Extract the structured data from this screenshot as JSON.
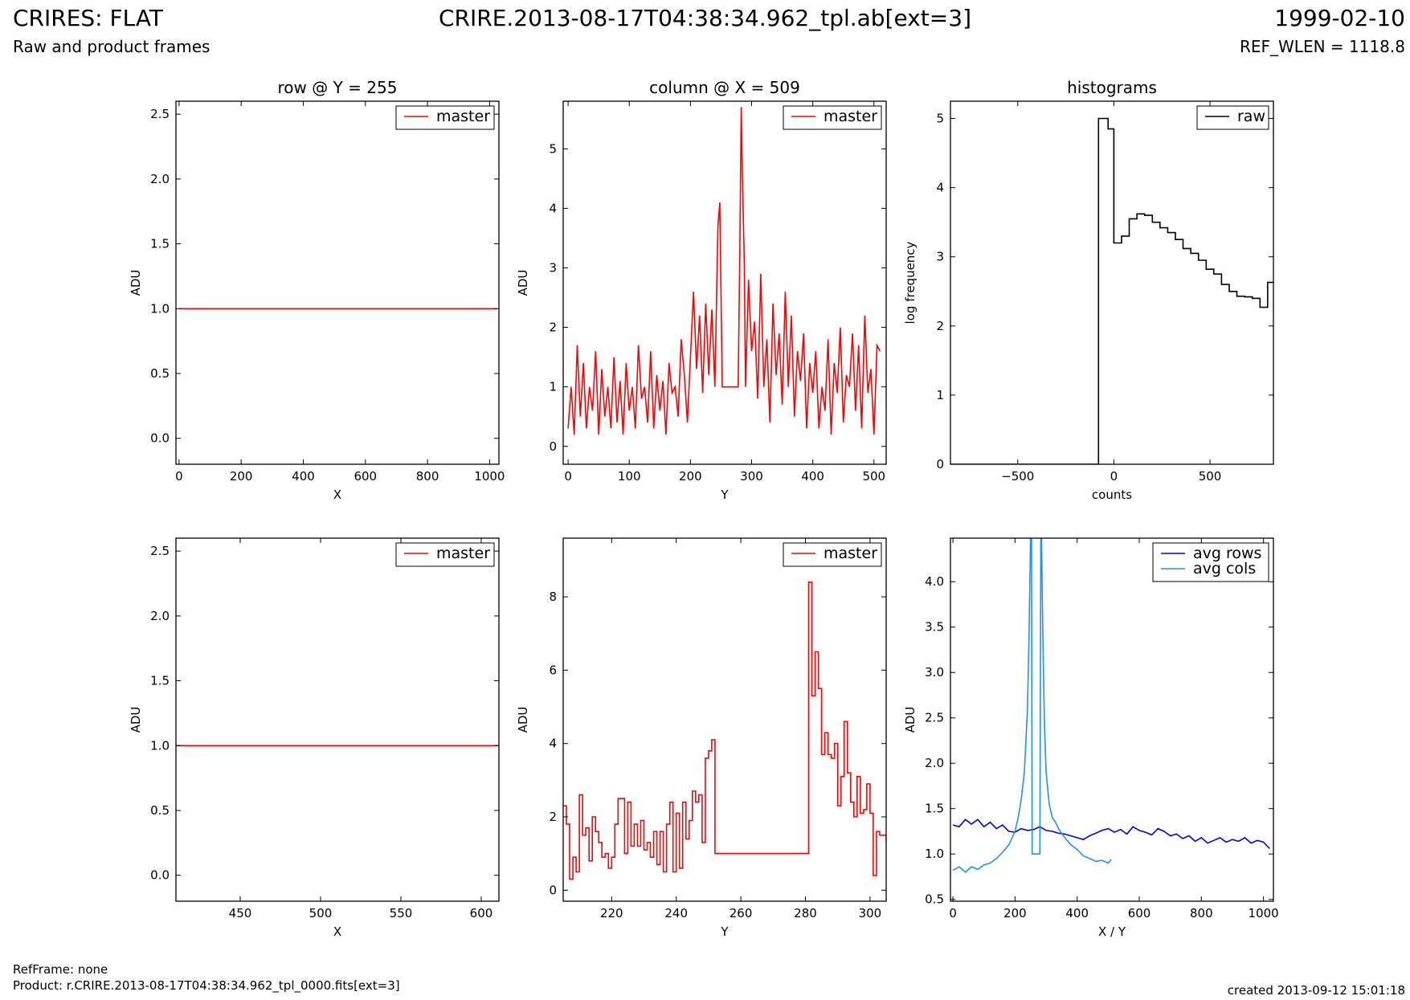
{
  "header": {
    "title_left": "CRIRES: FLAT",
    "subtitle_left": "Raw and product frames",
    "title_center": "CRIRE.2013-08-17T04:38:34.962_tpl.ab[ext=3]",
    "title_right": "1999-02-10",
    "subtitle_right": "REF_WLEN = 1118.8"
  },
  "footer": {
    "ref_frame": "RefFrame: none",
    "product": "Product: r.CRIRE.2013-08-17T04:38:34.962_tpl_0000.fits[ext=3]",
    "created": "created 2013-09-12 15:01:18"
  },
  "colors": {
    "master": "#ff0000",
    "raw": "#000000",
    "avg_rows": "#0000ee",
    "avg_cols": "#1e90ff"
  },
  "chart_data": [
    {
      "type": "line",
      "title": "row @ Y = 255",
      "xlabel": "X",
      "ylabel": "ADU",
      "xlim": [
        -10,
        1030
      ],
      "ylim": [
        -0.2,
        2.6
      ],
      "xticks": [
        0,
        200,
        400,
        600,
        800,
        1000
      ],
      "yticks": [
        0.0,
        0.5,
        1.0,
        1.5,
        2.0,
        2.5
      ],
      "ytick_labels": [
        "0.0",
        "0.5",
        "1.0",
        "1.5",
        "2.0",
        "2.5"
      ],
      "legend": "top-right",
      "series": [
        {
          "name": "master",
          "color": "#ff0000",
          "step": false,
          "x": [
            0,
            1023
          ],
          "y": [
            1.0,
            1.0
          ]
        }
      ]
    },
    {
      "type": "line",
      "title": "column @ X = 509",
      "xlabel": "Y",
      "ylabel": "ADU",
      "xlim": [
        -8,
        520
      ],
      "ylim": [
        -0.3,
        5.8
      ],
      "xticks": [
        0,
        100,
        200,
        300,
        400,
        500
      ],
      "yticks": [
        0,
        1,
        2,
        3,
        4,
        5
      ],
      "legend": "top-right",
      "series": [
        {
          "name": "master",
          "color": "#ff0000",
          "step": false,
          "x": [
            0,
            5,
            10,
            15,
            20,
            25,
            30,
            35,
            40,
            45,
            50,
            55,
            60,
            65,
            70,
            75,
            80,
            85,
            90,
            95,
            100,
            105,
            110,
            115,
            120,
            125,
            130,
            135,
            140,
            145,
            150,
            155,
            160,
            165,
            170,
            175,
            180,
            185,
            190,
            195,
            200,
            205,
            210,
            215,
            220,
            225,
            230,
            235,
            240,
            245,
            248,
            252,
            255,
            262,
            270,
            278,
            281,
            283,
            285,
            288,
            290,
            295,
            300,
            305,
            310,
            315,
            320,
            325,
            330,
            335,
            340,
            345,
            350,
            355,
            360,
            365,
            370,
            375,
            380,
            385,
            390,
            395,
            400,
            405,
            410,
            415,
            420,
            425,
            430,
            435,
            440,
            445,
            450,
            455,
            460,
            465,
            470,
            475,
            480,
            485,
            490,
            495,
            500,
            505,
            510
          ],
          "y": [
            0.3,
            1.0,
            0.2,
            1.7,
            0.5,
            1.4,
            0.3,
            1.0,
            0.6,
            1.6,
            0.2,
            1.3,
            0.5,
            1.0,
            0.3,
            1.5,
            0.4,
            1.1,
            0.2,
            1.4,
            0.6,
            1.0,
            0.3,
            1.7,
            0.8,
            1.0,
            0.4,
            1.6,
            0.3,
            1.2,
            0.6,
            1.1,
            0.2,
            1.4,
            0.9,
            1.0,
            0.5,
            1.8,
            1.2,
            0.4,
            1.5,
            2.6,
            1.3,
            2.2,
            0.9,
            2.4,
            1.2,
            2.3,
            1.0,
            3.7,
            4.1,
            1.0,
            1.0,
            1.0,
            1.0,
            1.0,
            3.5,
            5.7,
            4.5,
            3.1,
            1.0,
            2.8,
            1.6,
            2.1,
            0.8,
            2.9,
            1.0,
            1.8,
            0.4,
            2.4,
            1.2,
            1.9,
            0.7,
            2.6,
            1.0,
            2.2,
            0.5,
            1.6,
            1.1,
            1.9,
            0.3,
            1.4,
            0.9,
            1.6,
            0.3,
            1.0,
            0.6,
            1.8,
            0.2,
            1.4,
            0.9,
            2.0,
            0.4,
            1.2,
            1.0,
            1.9,
            0.6,
            1.7,
            0.3,
            2.2,
            0.9,
            1.3,
            0.2,
            1.7,
            1.6
          ]
        }
      ]
    },
    {
      "type": "line",
      "title": "histograms",
      "xlabel": "counts",
      "ylabel": "log frequency",
      "xlim": [
        -850,
        830
      ],
      "ylim": [
        0,
        5.25
      ],
      "xticks": [
        -500,
        0,
        500
      ],
      "xtick_labels": [
        "−500",
        "0",
        "500"
      ],
      "yticks": [
        0,
        1,
        2,
        3,
        4,
        5
      ],
      "legend": "top-right",
      "series": [
        {
          "name": "raw",
          "color": "#000000",
          "step": true,
          "x": [
            -850,
            -80,
            -80,
            -30,
            -30,
            0,
            0,
            40,
            40,
            80,
            80,
            120,
            120,
            160,
            160,
            200,
            200,
            240,
            240,
            280,
            280,
            320,
            320,
            360,
            360,
            400,
            400,
            440,
            440,
            480,
            480,
            520,
            520,
            560,
            560,
            600,
            600,
            640,
            640,
            680,
            680,
            720,
            720,
            760,
            760,
            800,
            800,
            830
          ],
          "y": [
            0,
            0,
            5.0,
            5.0,
            4.85,
            4.85,
            3.2,
            3.2,
            3.3,
            3.3,
            3.55,
            3.55,
            3.62,
            3.62,
            3.6,
            3.6,
            3.5,
            3.5,
            3.42,
            3.42,
            3.35,
            3.35,
            3.25,
            3.25,
            3.12,
            3.12,
            3.05,
            3.05,
            2.95,
            2.95,
            2.82,
            2.82,
            2.75,
            2.75,
            2.6,
            2.6,
            2.5,
            2.5,
            2.43,
            2.43,
            2.42,
            2.42,
            2.4,
            2.4,
            2.27,
            2.27,
            2.63,
            2.63
          ]
        }
      ]
    },
    {
      "type": "line",
      "title": "",
      "xlabel": "X",
      "ylabel": "ADU",
      "xlim": [
        410,
        611
      ],
      "ylim": [
        -0.2,
        2.6
      ],
      "xticks": [
        450,
        500,
        550,
        600
      ],
      "yticks": [
        0.0,
        0.5,
        1.0,
        1.5,
        2.0,
        2.5
      ],
      "ytick_labels": [
        "0.0",
        "0.5",
        "1.0",
        "1.5",
        "2.0",
        "2.5"
      ],
      "legend": "top-right",
      "series": [
        {
          "name": "master",
          "color": "#ff0000",
          "step": false,
          "x": [
            410,
            611
          ],
          "y": [
            1.0,
            1.0
          ]
        }
      ]
    },
    {
      "type": "line",
      "title": "",
      "xlabel": "Y",
      "ylabel": "ADU",
      "xlim": [
        205,
        305
      ],
      "ylim": [
        -0.3,
        9.6
      ],
      "xticks": [
        220,
        240,
        260,
        280,
        300
      ],
      "yticks": [
        0,
        2,
        4,
        6,
        8
      ],
      "legend": "top-right",
      "series": [
        {
          "name": "master",
          "color": "#ff0000",
          "step": true,
          "x": [
            205,
            206,
            207,
            208,
            209,
            210,
            211,
            212,
            213,
            214,
            215,
            216,
            217,
            218,
            219,
            220,
            221,
            222,
            223,
            224,
            225,
            226,
            227,
            228,
            229,
            230,
            231,
            232,
            233,
            234,
            235,
            236,
            237,
            238,
            239,
            240,
            241,
            242,
            243,
            244,
            245,
            246,
            247,
            248,
            249,
            250,
            251,
            252,
            281,
            282,
            283,
            284,
            285,
            286,
            287,
            288,
            289,
            290,
            291,
            292,
            293,
            294,
            295,
            296,
            297,
            298,
            299,
            300,
            301,
            302,
            303,
            304,
            305
          ],
          "y": [
            2.3,
            1.8,
            0.3,
            0.9,
            0.5,
            2.6,
            1.5,
            1.7,
            0.8,
            2.0,
            1.6,
            1.3,
            0.9,
            1.0,
            0.6,
            0.9,
            1.8,
            2.5,
            2.5,
            1.0,
            2.4,
            1.2,
            1.8,
            1.2,
            1.9,
            1.1,
            1.3,
            0.9,
            1.6,
            0.7,
            1.6,
            0.5,
            1.8,
            2.4,
            0.5,
            2.1,
            0.6,
            2.4,
            1.4,
            1.9,
            2.7,
            2.4,
            2.6,
            1.3,
            3.6,
            3.8,
            4.1,
            1.0,
            8.4,
            5.3,
            6.5,
            5.5,
            3.7,
            4.3,
            3.7,
            3.6,
            4.0,
            2.3,
            3.1,
            4.6,
            3.2,
            2.4,
            2.0,
            3.1,
            2.1,
            2.2,
            2.9,
            2.1,
            0.4,
            1.6,
            1.5,
            1.5,
            1.3
          ]
        }
      ]
    },
    {
      "type": "line",
      "title": "",
      "xlabel": "X / Y",
      "ylabel": "ADU",
      "xlim": [
        -8,
        1032
      ],
      "ylim": [
        0.48,
        4.48
      ],
      "xticks": [
        0,
        200,
        400,
        600,
        800,
        1000
      ],
      "yticks": [
        0.5,
        1.0,
        1.5,
        2.0,
        2.5,
        3.0,
        3.5,
        4.0
      ],
      "ytick_labels": [
        "0.5",
        "1.0",
        "1.5",
        "2.0",
        "2.5",
        "3.0",
        "3.5",
        "4.0"
      ],
      "legend": "top-right",
      "series": [
        {
          "name": "avg rows",
          "color": "#0000ee",
          "step": false,
          "x": [
            0,
            20,
            40,
            60,
            80,
            100,
            120,
            140,
            160,
            180,
            200,
            220,
            240,
            260,
            280,
            300,
            320,
            340,
            360,
            380,
            400,
            420,
            440,
            460,
            480,
            500,
            520,
            540,
            560,
            580,
            600,
            620,
            640,
            660,
            680,
            700,
            720,
            740,
            760,
            780,
            800,
            820,
            840,
            860,
            880,
            900,
            920,
            940,
            960,
            980,
            1000,
            1020
          ],
          "y": [
            1.32,
            1.3,
            1.38,
            1.33,
            1.38,
            1.3,
            1.35,
            1.28,
            1.32,
            1.25,
            1.24,
            1.28,
            1.26,
            1.27,
            1.3,
            1.26,
            1.25,
            1.23,
            1.22,
            1.2,
            1.18,
            1.16,
            1.2,
            1.23,
            1.26,
            1.28,
            1.24,
            1.27,
            1.22,
            1.3,
            1.26,
            1.24,
            1.21,
            1.28,
            1.25,
            1.2,
            1.22,
            1.17,
            1.2,
            1.14,
            1.18,
            1.12,
            1.15,
            1.18,
            1.13,
            1.16,
            1.14,
            1.18,
            1.12,
            1.15,
            1.13,
            1.06
          ]
        },
        {
          "name": "avg cols",
          "color": "#1e90ff",
          "step": false,
          "x": [
            0,
            20,
            40,
            60,
            80,
            100,
            120,
            140,
            160,
            180,
            200,
            210,
            220,
            230,
            240,
            245,
            250,
            253,
            255,
            265,
            280,
            283,
            285,
            290,
            295,
            300,
            310,
            320,
            330,
            340,
            360,
            380,
            400,
            420,
            440,
            460,
            480,
            500,
            510
          ],
          "y": [
            0.82,
            0.86,
            0.8,
            0.86,
            0.83,
            0.88,
            0.9,
            0.95,
            1.02,
            1.1,
            1.25,
            1.4,
            1.6,
            1.9,
            2.6,
            3.4,
            4.48,
            4.48,
            1.0,
            1.0,
            1.0,
            4.48,
            4.48,
            3.3,
            2.4,
            1.9,
            1.55,
            1.4,
            1.35,
            1.28,
            1.18,
            1.1,
            1.05,
            0.98,
            0.95,
            0.92,
            0.93,
            0.9,
            0.94
          ]
        }
      ]
    }
  ]
}
